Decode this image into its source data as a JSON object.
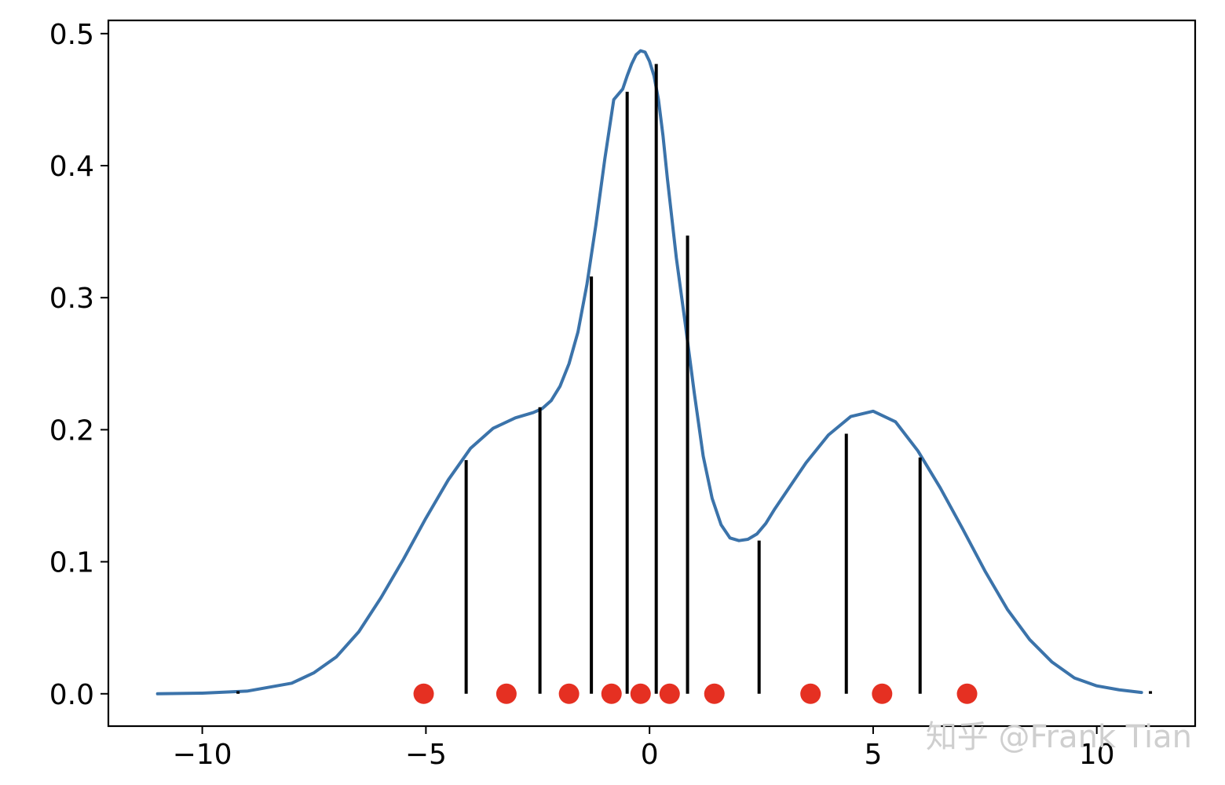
{
  "chart_data": {
    "type": "line",
    "title": "",
    "xlabel": "",
    "ylabel": "",
    "xlim": [
      -12.1,
      12.2
    ],
    "ylim": [
      -0.0245,
      0.51
    ],
    "x_ticks": [
      -10,
      -5,
      0,
      5,
      10
    ],
    "x_tick_labels": [
      "−10",
      "−5",
      "0",
      "5",
      "10"
    ],
    "y_ticks": [
      0.0,
      0.1,
      0.2,
      0.3,
      0.4,
      0.5
    ],
    "y_tick_labels": [
      "0.0",
      "0.1",
      "0.2",
      "0.3",
      "0.4",
      "0.5"
    ],
    "grid": false,
    "curve": {
      "color": "#3b73aa",
      "x": [
        -11.0,
        -10.0,
        -9.0,
        -8.0,
        -7.5,
        -7.0,
        -6.5,
        -6.0,
        -5.5,
        -5.0,
        -4.5,
        -4.0,
        -3.5,
        -3.0,
        -2.6,
        -2.4,
        -2.2,
        -2.0,
        -1.8,
        -1.6,
        -1.4,
        -1.2,
        -1.0,
        -0.8,
        -0.6,
        -0.5,
        -0.4,
        -0.3,
        -0.2,
        -0.1,
        0.0,
        0.1,
        0.2,
        0.3,
        0.4,
        0.5,
        0.6,
        0.8,
        1.0,
        1.2,
        1.4,
        1.6,
        1.8,
        2.0,
        2.2,
        2.4,
        2.6,
        2.8,
        3.0,
        3.5,
        4.0,
        4.5,
        5.0,
        5.5,
        6.0,
        6.5,
        7.0,
        7.5,
        8.0,
        8.5,
        9.0,
        9.5,
        10.0,
        10.5,
        11.0
      ],
      "y": [
        0.0,
        0.0005,
        0.002,
        0.008,
        0.016,
        0.028,
        0.047,
        0.073,
        0.102,
        0.133,
        0.162,
        0.186,
        0.201,
        0.209,
        0.213,
        0.216,
        0.222,
        0.233,
        0.25,
        0.274,
        0.31,
        0.355,
        0.405,
        0.45,
        0.458,
        0.468,
        0.477,
        0.484,
        0.487,
        0.486,
        0.479,
        0.468,
        0.45,
        0.423,
        0.39,
        0.36,
        0.33,
        0.28,
        0.228,
        0.18,
        0.148,
        0.128,
        0.118,
        0.116,
        0.117,
        0.121,
        0.129,
        0.14,
        0.15,
        0.175,
        0.196,
        0.21,
        0.214,
        0.206,
        0.184,
        0.156,
        0.125,
        0.093,
        0.064,
        0.041,
        0.024,
        0.012,
        0.006,
        0.003,
        0.001
      ]
    },
    "vlines": {
      "color": "#000000",
      "x": [
        -9.2,
        -4.1,
        -2.45,
        -1.3,
        -0.5,
        0.15,
        0.85,
        2.45,
        4.4,
        6.05,
        11.2
      ],
      "y": [
        0.002,
        0.177,
        0.217,
        0.316,
        0.456,
        0.477,
        0.347,
        0.116,
        0.197,
        0.179,
        0.002
      ]
    },
    "points": {
      "color": "#e53022",
      "x": [
        -5.05,
        -3.2,
        -1.8,
        -0.85,
        -0.2,
        0.45,
        1.45,
        3.6,
        5.2,
        7.1
      ],
      "y": [
        0,
        0,
        0,
        0,
        0,
        0,
        0,
        0,
        0,
        0
      ]
    }
  },
  "watermark": "知乎 @Frank Tian"
}
